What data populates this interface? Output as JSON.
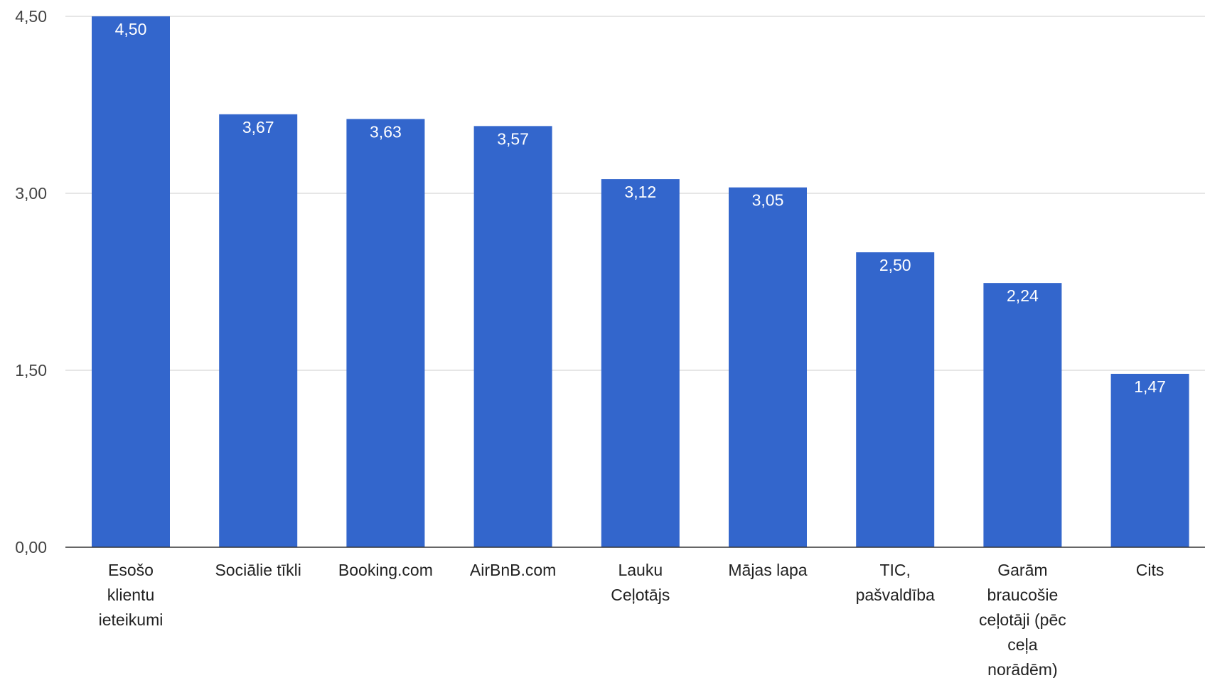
{
  "chart_data": {
    "type": "bar",
    "title": "",
    "xlabel": "",
    "ylabel": "",
    "ylim": [
      0,
      4.5
    ],
    "yticks": [
      "0,00",
      "1,50",
      "3,00",
      "4,50"
    ],
    "ytick_values": [
      0,
      1.5,
      3,
      4.5
    ],
    "grid": true,
    "legend": "none",
    "bar_color": "#3366cc",
    "categories": [
      [
        "Esošo",
        "klientu",
        "ieteikumi"
      ],
      [
        "Sociālie tīkli"
      ],
      [
        "Booking.com"
      ],
      [
        "AirBnB.com"
      ],
      [
        "Lauku",
        "Ceļotājs"
      ],
      [
        "Mājas lapa"
      ],
      [
        "TIC,",
        "pašvaldība"
      ],
      [
        "Garām",
        "braucošie",
        "ceļotāji (pēc",
        "ceļa",
        "norādēm)"
      ],
      [
        "Cits"
      ]
    ],
    "values": [
      4.5,
      3.67,
      3.63,
      3.57,
      3.12,
      3.05,
      2.5,
      2.24,
      1.47
    ],
    "value_labels": [
      "4,50",
      "3,67",
      "3,63",
      "3,57",
      "3,12",
      "3,05",
      "2,50",
      "2,24",
      "1,47"
    ]
  }
}
